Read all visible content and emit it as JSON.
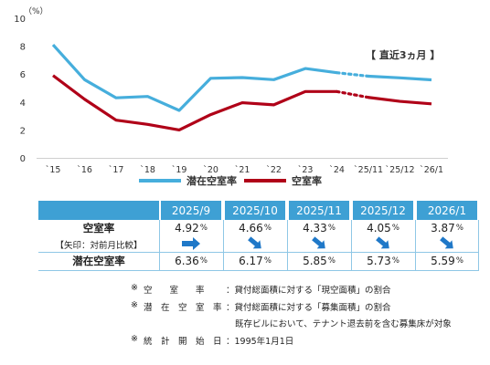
{
  "chart_data": {
    "type": "line",
    "y_unit": "（%）",
    "ylim": [
      0,
      10
    ],
    "yticks": [
      "0",
      "2",
      "4",
      "6",
      "8",
      "10"
    ],
    "categories": [
      "`15",
      "`16",
      "`17",
      "`18",
      "`19",
      "`20",
      "`21",
      "`22",
      "`23",
      "`24",
      "`25/11",
      "`25/12",
      "`26/1"
    ],
    "annotation": "【 直近3ヵ月 】",
    "series": [
      {
        "name": "潜在空室率",
        "color": "#46aedc",
        "values": [
          8.1,
          5.6,
          4.3,
          4.4,
          3.4,
          5.7,
          5.75,
          5.6,
          6.4,
          6.1,
          5.85,
          5.73,
          5.59
        ]
      },
      {
        "name": "空室率",
        "color": "#b00018",
        "values": [
          5.9,
          4.2,
          2.7,
          2.4,
          2.0,
          3.1,
          3.95,
          3.8,
          4.75,
          4.75,
          4.33,
          4.05,
          3.87
        ]
      }
    ],
    "table": {
      "columns": [
        "2025/9",
        "2025/10",
        "2025/11",
        "2025/12",
        "2026/1"
      ],
      "rows": [
        {
          "label": "空室率",
          "values": [
            "4.92",
            "4.66",
            "4.33",
            "4.05",
            "3.87"
          ]
        },
        {
          "label": "【矢印：対前月比較】",
          "arrows": [
            "right",
            "down-right",
            "down-right",
            "down-right",
            "down-right"
          ]
        },
        {
          "label": "潜在空室率",
          "values": [
            "6.36",
            "6.17",
            "5.85",
            "5.73",
            "5.59"
          ]
        }
      ],
      "pct": "%"
    }
  },
  "notes": [
    {
      "mark": "※",
      "label": "空　　室　　率",
      "text": "：貸付総面積に対する「現空面積」の割合"
    },
    {
      "mark": "※",
      "label": "潜　在　空　室　率",
      "text": "：貸付総面積に対する「募集面積」の割合"
    },
    {
      "mark": "",
      "label": "",
      "text": "既存ビルにおいて、テナント退去前を含む募集床が対象"
    },
    {
      "mark": "※",
      "label": "統　計　開　始　日",
      "text": "：1995年1月1日"
    }
  ],
  "colors": {
    "header": "#3ea0d4",
    "arrow": "#1f78c8",
    "grid": "#8fc7e6"
  }
}
